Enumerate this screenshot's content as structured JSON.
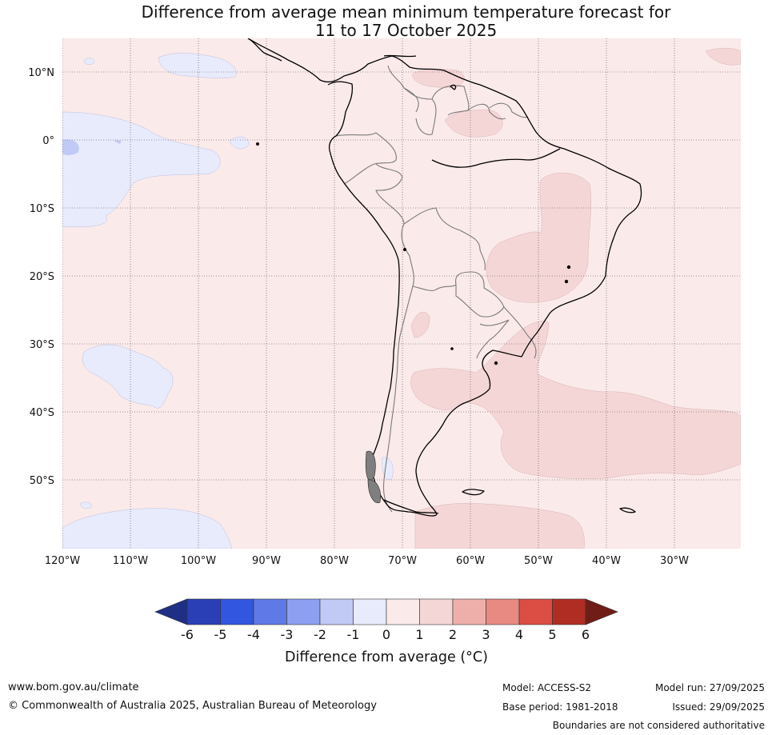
{
  "title": {
    "line1": "Difference from average mean minimum temperature forecast for",
    "line2": "11 to 17 October 2025"
  },
  "map": {
    "latitude_labels": [
      "10°N",
      "0°",
      "10°S",
      "20°S",
      "30°S",
      "40°S",
      "50°S"
    ],
    "longitude_labels": [
      "120°W",
      "110°W",
      "100°W",
      "90°W",
      "80°W",
      "70°W",
      "60°W",
      "50°W",
      "40°W",
      "30°W"
    ]
  },
  "colorbar": {
    "ticks": [
      "-6",
      "-5",
      "-4",
      "-3",
      "-2",
      "-1",
      "0",
      "1",
      "2",
      "3",
      "4",
      "5",
      "6"
    ],
    "colors": [
      "#1f2f86",
      "#2a3fb6",
      "#3256e0",
      "#5f79e6",
      "#8c9ff0",
      "#c1c9f5",
      "#e8ebfb",
      "#fbeaea",
      "#f5d6d6",
      "#eeafaa",
      "#e88982",
      "#dc4d43",
      "#b02d23",
      "#701d18"
    ],
    "title": "Difference from average (°C)"
  },
  "footer": {
    "website": "www.bom.gov.au/climate",
    "copyright": "© Commonwealth of Australia 2025, Australian Bureau of Meteorology",
    "model": "Model: ACCESS-S2",
    "base_period": "Base period: 1981-2018",
    "model_run": "Model run: 27/09/2025",
    "issued": "Issued: 29/09/2025",
    "disclaimer": "Boundaries are not considered authoritative"
  }
}
